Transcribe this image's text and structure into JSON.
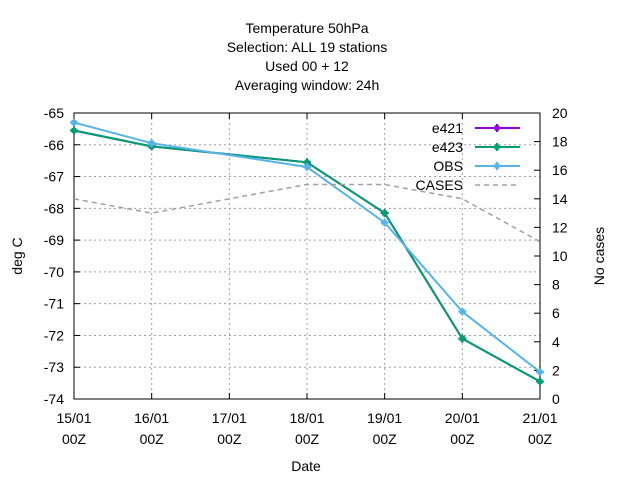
{
  "chart_data": {
    "type": "line",
    "title_lines": [
      "Temperature 50hPa",
      "Selection: ALL      19 stations",
      "Used  00  + 12",
      "Averaging window: 24h"
    ],
    "xlabel": "Date",
    "ylabel": "deg C",
    "y2label": "No cases",
    "x_ticks": [
      "15/01\n00Z",
      "16/01\n00Z",
      "17/01\n00Z",
      "18/01\n00Z",
      "19/01\n00Z",
      "20/01\n00Z",
      "21/01\n00Z"
    ],
    "ylim": [
      -74,
      -65
    ],
    "y_ticks": [
      -65,
      -66,
      -67,
      -68,
      -69,
      -70,
      -71,
      -72,
      -73,
      -74
    ],
    "y2lim": [
      0,
      20
    ],
    "y2_ticks": [
      0,
      2,
      4,
      6,
      8,
      10,
      12,
      14,
      16,
      18,
      20
    ],
    "grid": true,
    "legend_position": "top-right",
    "series": [
      {
        "name": "e421",
        "axis": "y1",
        "color": "#9400d3",
        "style": "solid",
        "marker": "plus",
        "x": [
          0,
          1,
          3,
          4,
          5,
          6
        ],
        "values": [
          -65.55,
          -66.05,
          -66.55,
          -68.15,
          -72.1,
          -73.45
        ]
      },
      {
        "name": "e423",
        "axis": "y1",
        "color": "#009e73",
        "style": "solid",
        "marker": "plus",
        "x": [
          0,
          1,
          3,
          4,
          5,
          6
        ],
        "values": [
          -65.55,
          -66.05,
          -66.55,
          -68.15,
          -72.1,
          -73.45
        ]
      },
      {
        "name": "OBS",
        "axis": "y1",
        "color": "#56b4e9",
        "style": "solid",
        "marker": "plus",
        "x": [
          0,
          1,
          3,
          4,
          5,
          6
        ],
        "values": [
          -65.3,
          -65.95,
          -66.7,
          -68.45,
          -71.25,
          -73.15
        ]
      },
      {
        "name": "CASES",
        "axis": "y2",
        "color": "#a0a0a0",
        "style": "dashed",
        "marker": "none",
        "x": [
          0,
          1,
          2,
          3,
          4,
          5,
          6
        ],
        "values": [
          14,
          13,
          14,
          15,
          15,
          14,
          11
        ]
      }
    ]
  }
}
